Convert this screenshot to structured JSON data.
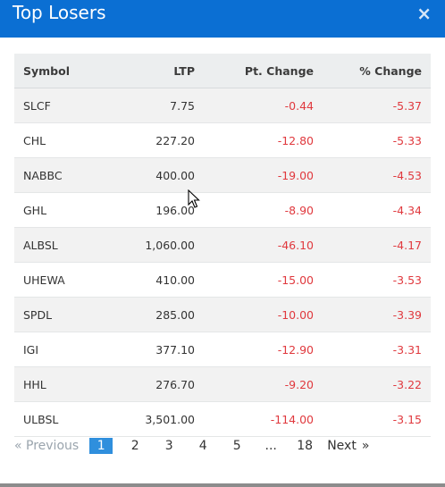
{
  "header": {
    "title": "Top Losers",
    "close_label": "×"
  },
  "table": {
    "columns": [
      "Symbol",
      "LTP",
      "Pt. Change",
      "% Change"
    ],
    "rows": [
      {
        "symbol": "SLCF",
        "ltp": "7.75",
        "pt_change": "-0.44",
        "pct_change": "-5.37"
      },
      {
        "symbol": "CHL",
        "ltp": "227.20",
        "pt_change": "-12.80",
        "pct_change": "-5.33"
      },
      {
        "symbol": "NABBC",
        "ltp": "400.00",
        "pt_change": "-19.00",
        "pct_change": "-4.53"
      },
      {
        "symbol": "GHL",
        "ltp": "196.00",
        "pt_change": "-8.90",
        "pct_change": "-4.34"
      },
      {
        "symbol": "ALBSL",
        "ltp": "1,060.00",
        "pt_change": "-46.10",
        "pct_change": "-4.17"
      },
      {
        "symbol": "UHEWA",
        "ltp": "410.00",
        "pt_change": "-15.00",
        "pct_change": "-3.53"
      },
      {
        "symbol": "SPDL",
        "ltp": "285.00",
        "pt_change": "-10.00",
        "pct_change": "-3.39"
      },
      {
        "symbol": "IGI",
        "ltp": "377.10",
        "pt_change": "-12.90",
        "pct_change": "-3.31"
      },
      {
        "symbol": "HHL",
        "ltp": "276.70",
        "pt_change": "-9.20",
        "pct_change": "-3.22"
      },
      {
        "symbol": "ULBSL",
        "ltp": "3,501.00",
        "pt_change": "-114.00",
        "pct_change": "-3.15"
      }
    ]
  },
  "pagination": {
    "prev_label": "« Previous",
    "pages": [
      "1",
      "2",
      "3",
      "4",
      "5"
    ],
    "ellipsis": "...",
    "last_page": "18",
    "next_label": "Next",
    "next_arrow": "»",
    "active_page": "1"
  },
  "colors": {
    "header_bg": "#0b6fd3",
    "negative": "#e0393e",
    "active_page": "#2f8fdd"
  },
  "icons": {
    "close": "close-icon",
    "cursor": "mouse-pointer-icon"
  }
}
